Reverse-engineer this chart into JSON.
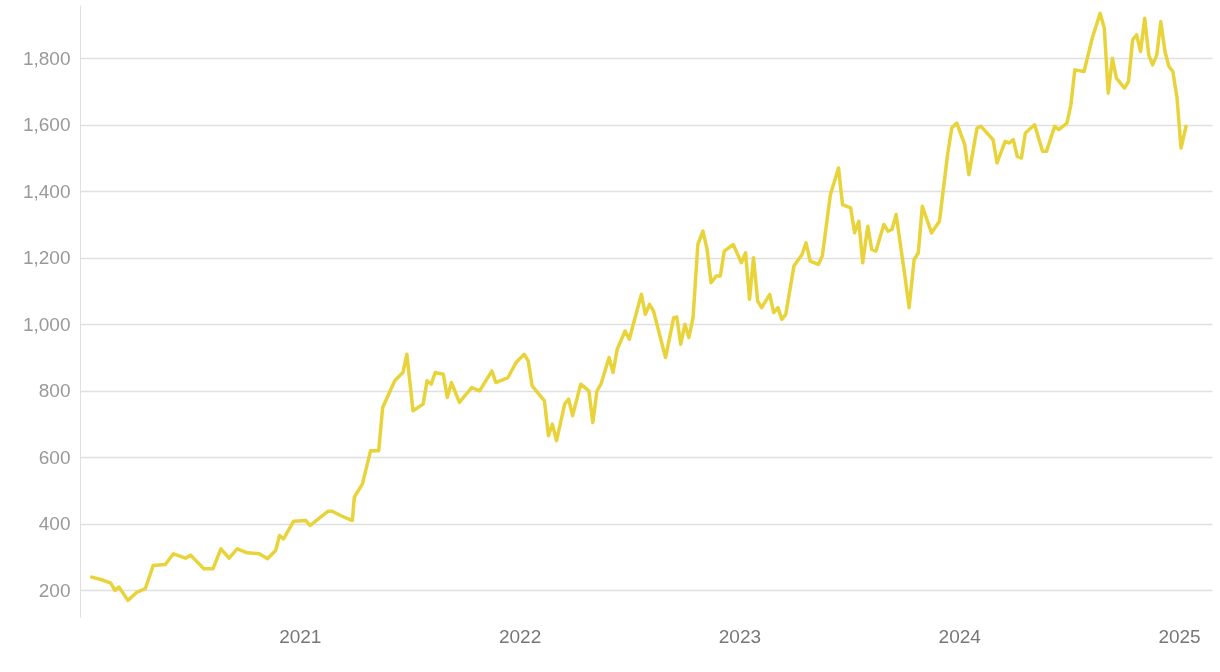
{
  "chart_data": {
    "type": "line",
    "grid": "y",
    "marker": "none",
    "line_style": "solid",
    "xlim": [
      2020.0,
      2025.15
    ],
    "xticks": [
      2021,
      2022,
      2023,
      2024,
      2025
    ],
    "ylim": [
      120,
      1960
    ],
    "yticks": [
      {
        "value": 200,
        "label": "200"
      },
      {
        "value": 400,
        "label": "400"
      },
      {
        "value": 600,
        "label": "600"
      },
      {
        "value": 800,
        "label": "800"
      },
      {
        "value": 1000,
        "label": "1,000"
      },
      {
        "value": 1200,
        "label": "1,200"
      },
      {
        "value": 1400,
        "label": "1,400"
      },
      {
        "value": 1600,
        "label": "1,600"
      },
      {
        "value": 1800,
        "label": "1,800"
      }
    ],
    "x": [
      2020.053,
      2020.099,
      2020.14,
      2020.159,
      2020.177,
      2020.218,
      2020.26,
      2020.297,
      2020.333,
      2020.388,
      2020.425,
      2020.48,
      2020.503,
      2020.563,
      2020.605,
      2020.641,
      2020.678,
      2020.715,
      2020.761,
      2020.816,
      2020.853,
      2020.89,
      2020.908,
      2020.926,
      2020.972,
      2021.028,
      2021.046,
      2021.129,
      2021.147,
      2021.202,
      2021.239,
      2021.248,
      2021.285,
      2021.322,
      2021.359,
      2021.377,
      2021.432,
      2021.469,
      2021.487,
      2021.515,
      2021.561,
      2021.579,
      2021.598,
      2021.616,
      2021.653,
      2021.671,
      2021.69,
      2021.726,
      2021.782,
      2021.818,
      2021.874,
      2021.892,
      2021.947,
      2021.984,
      2022.021,
      2022.039,
      2022.057,
      2022.113,
      2022.131,
      2022.149,
      2022.168,
      2022.205,
      2022.223,
      2022.241,
      2022.278,
      2022.315,
      2022.333,
      2022.352,
      2022.37,
      2022.407,
      2022.425,
      2022.444,
      2022.48,
      2022.499,
      2022.554,
      2022.572,
      2022.591,
      2022.609,
      2022.664,
      2022.701,
      2022.715,
      2022.733,
      2022.752,
      2022.77,
      2022.789,
      2022.811,
      2022.834,
      2022.853,
      2022.871,
      2022.894,
      2022.913,
      2022.931,
      2022.972,
      2023.009,
      2023.028,
      2023.046,
      2023.064,
      2023.083,
      2023.101,
      2023.138,
      2023.156,
      2023.175,
      2023.193,
      2023.211,
      2023.248,
      2023.285,
      2023.303,
      2023.322,
      2023.359,
      2023.377,
      2023.414,
      2023.451,
      2023.469,
      2023.506,
      2023.524,
      2023.543,
      2023.561,
      2023.584,
      2023.602,
      2023.621,
      2023.657,
      2023.676,
      2023.694,
      2023.713,
      2023.754,
      2023.772,
      2023.795,
      2023.814,
      2023.832,
      2023.874,
      2023.91,
      2023.947,
      2023.966,
      2023.989,
      2024.025,
      2024.044,
      2024.081,
      2024.099,
      2024.154,
      2024.172,
      2024.209,
      2024.228,
      2024.246,
      2024.264,
      2024.283,
      2024.301,
      2024.343,
      2024.379,
      2024.397,
      2024.434,
      2024.453,
      2024.49,
      2024.508,
      2024.526,
      2024.568,
      2024.605,
      2024.641,
      2024.66,
      2024.678,
      2024.697,
      2024.715,
      2024.752,
      2024.77,
      2024.789,
      2024.807,
      2024.825,
      2024.844,
      2024.862,
      2024.88,
      2024.899,
      2024.917,
      2024.936,
      2024.954,
      2024.972,
      2024.991,
      2025.009,
      2025.032
    ],
    "series": [
      {
        "color": "#e8d43a",
        "values": [
          240,
          232,
          222,
          200,
          210,
          170,
          195,
          205,
          275,
          278,
          310,
          297,
          306,
          265,
          265,
          325,
          297,
          325,
          313,
          310,
          295,
          320,
          365,
          355,
          408,
          410,
          395,
          438,
          438,
          420,
          410,
          480,
          520,
          620,
          620,
          750,
          830,
          855,
          910,
          740,
          760,
          830,
          820,
          855,
          850,
          780,
          825,
          765,
          810,
          800,
          860,
          825,
          840,
          885,
          910,
          890,
          815,
          770,
          665,
          700,
          650,
          760,
          775,
          725,
          820,
          800,
          705,
          800,
          820,
          900,
          855,
          925,
          980,
          955,
          1090,
          1030,
          1060,
          1040,
          900,
          1020,
          1022,
          940,
          1000,
          960,
          1020,
          1240,
          1280,
          1225,
          1125,
          1145,
          1145,
          1220,
          1240,
          1185,
          1215,
          1075,
          1200,
          1070,
          1050,
          1090,
          1035,
          1050,
          1015,
          1030,
          1175,
          1210,
          1245,
          1190,
          1180,
          1205,
          1390,
          1470,
          1360,
          1350,
          1275,
          1310,
          1185,
          1295,
          1225,
          1220,
          1300,
          1280,
          1285,
          1330,
          1140,
          1050,
          1195,
          1215,
          1355,
          1275,
          1310,
          1510,
          1590,
          1605,
          1540,
          1450,
          1590,
          1595,
          1555,
          1485,
          1550,
          1545,
          1555,
          1505,
          1500,
          1575,
          1600,
          1520,
          1520,
          1595,
          1585,
          1605,
          1660,
          1765,
          1760,
          1860,
          1935,
          1890,
          1695,
          1800,
          1740,
          1710,
          1730,
          1855,
          1870,
          1820,
          1920,
          1810,
          1780,
          1810,
          1910,
          1820,
          1775,
          1760,
          1680,
          1530,
          1595
        ]
      }
    ]
  }
}
